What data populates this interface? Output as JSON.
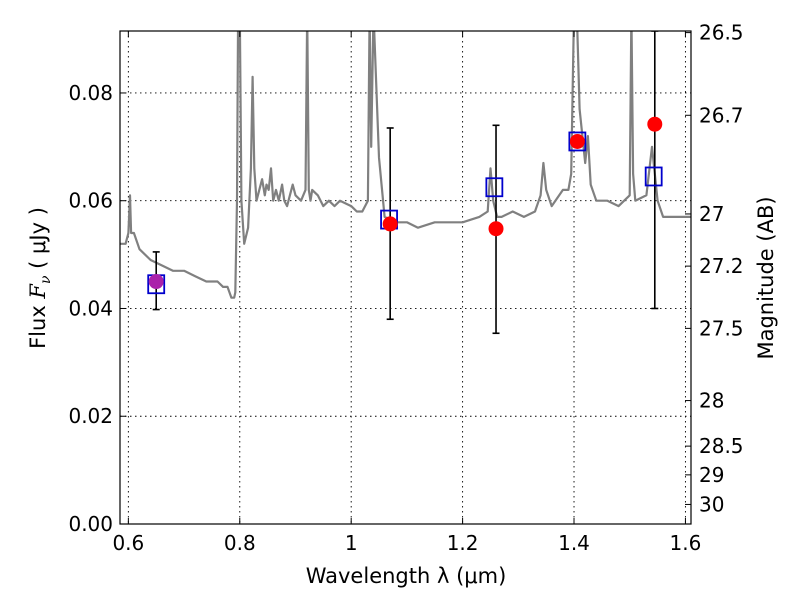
{
  "chart_data": {
    "type": "scatter",
    "xlabel": "Wavelength  λ (μm)",
    "ylabel": "Flux  F_ν  ( μJy )",
    "ylabel_parts": {
      "pre": "Flux ",
      "f": "F",
      "sub": "ν",
      "post": " ( μJy )"
    },
    "right_ylabel": "Magnitude (AB)",
    "xlim": [
      0.585,
      1.61
    ],
    "ylim": [
      0.0,
      0.0915
    ],
    "grid": true,
    "x_ticks": [
      {
        "value": 0.6,
        "label": "0.6"
      },
      {
        "value": 0.8,
        "label": "0.8"
      },
      {
        "value": 1.0,
        "label": "1"
      },
      {
        "value": 1.2,
        "label": "1.2"
      },
      {
        "value": 1.4,
        "label": "1.4"
      },
      {
        "value": 1.6,
        "label": "1.6"
      }
    ],
    "y_ticks": [
      {
        "value": 0.0,
        "label": "0.00"
      },
      {
        "value": 0.02,
        "label": "0.02"
      },
      {
        "value": 0.04,
        "label": "0.04"
      },
      {
        "value": 0.06,
        "label": "0.06"
      },
      {
        "value": 0.08,
        "label": "0.08"
      }
    ],
    "magnitude_ticks": [
      {
        "mag": 26.5,
        "label": "26.5"
      },
      {
        "mag": 26.7,
        "label": "26.7"
      },
      {
        "mag": 27.0,
        "label": "27"
      },
      {
        "mag": 27.2,
        "label": "27.2"
      },
      {
        "mag": 27.5,
        "label": "27.5"
      },
      {
        "mag": 28.0,
        "label": "28"
      },
      {
        "mag": 28.5,
        "label": "28.5"
      },
      {
        "mag": 29.0,
        "label": "29"
      },
      {
        "mag": 30.0,
        "label": "30"
      }
    ],
    "series": [
      {
        "name": "",
        "role": "model_sed",
        "style": "line",
        "color": "#808080",
        "x": [
          0.585,
          0.595,
          0.6,
          0.603,
          0.605,
          0.61,
          0.62,
          0.64,
          0.66,
          0.68,
          0.7,
          0.72,
          0.74,
          0.76,
          0.77,
          0.778,
          0.785,
          0.79,
          0.792,
          0.795,
          0.797,
          0.8,
          0.803,
          0.808,
          0.815,
          0.82,
          0.823,
          0.826,
          0.83,
          0.84,
          0.845,
          0.848,
          0.852,
          0.856,
          0.86,
          0.865,
          0.87,
          0.876,
          0.88,
          0.885,
          0.89,
          0.895,
          0.9,
          0.91,
          0.918,
          0.921,
          0.924,
          0.927,
          0.93,
          0.94,
          0.95,
          0.96,
          0.97,
          0.98,
          1.0,
          1.01,
          1.02,
          1.03,
          1.033,
          1.036,
          1.04,
          1.05,
          1.06,
          1.08,
          1.1,
          1.12,
          1.15,
          1.18,
          1.2,
          1.23,
          1.245,
          1.25,
          1.255,
          1.262,
          1.27,
          1.29,
          1.31,
          1.33,
          1.34,
          1.345,
          1.35,
          1.36,
          1.38,
          1.39,
          1.395,
          1.4,
          1.405,
          1.41,
          1.42,
          1.425,
          1.43,
          1.44,
          1.45,
          1.46,
          1.48,
          1.5,
          1.503,
          1.506,
          1.51,
          1.53,
          1.54,
          1.55,
          1.56,
          1.58,
          1.6,
          1.61
        ],
        "y": [
          0.052,
          0.052,
          0.054,
          0.061,
          0.054,
          0.054,
          0.051,
          0.049,
          0.048,
          0.047,
          0.047,
          0.046,
          0.045,
          0.045,
          0.044,
          0.044,
          0.042,
          0.042,
          0.043,
          0.06,
          0.095,
          0.095,
          0.06,
          0.052,
          0.055,
          0.066,
          0.083,
          0.066,
          0.06,
          0.064,
          0.061,
          0.063,
          0.062,
          0.066,
          0.06,
          0.062,
          0.06,
          0.063,
          0.06,
          0.059,
          0.061,
          0.063,
          0.061,
          0.06,
          0.062,
          0.095,
          0.062,
          0.06,
          0.062,
          0.061,
          0.059,
          0.06,
          0.059,
          0.06,
          0.059,
          0.058,
          0.058,
          0.06,
          0.095,
          0.07,
          0.095,
          0.068,
          0.057,
          0.056,
          0.056,
          0.055,
          0.056,
          0.056,
          0.056,
          0.057,
          0.058,
          0.066,
          0.06,
          0.057,
          0.057,
          0.058,
          0.057,
          0.058,
          0.061,
          0.067,
          0.062,
          0.059,
          0.062,
          0.062,
          0.065,
          0.095,
          0.095,
          0.077,
          0.067,
          0.072,
          0.063,
          0.06,
          0.06,
          0.06,
          0.059,
          0.061,
          0.095,
          0.065,
          0.06,
          0.061,
          0.07,
          0.06,
          0.057,
          0.057,
          0.057,
          0.057
        ]
      },
      {
        "name": "",
        "role": "model_photometry",
        "style": "open_square",
        "color": "#0000cc",
        "x": [
          0.65,
          1.068,
          1.257,
          1.406,
          1.543
        ],
        "y": [
          0.0445,
          0.0565,
          0.0625,
          0.071,
          0.0645
        ]
      },
      {
        "name": "",
        "role": "observed",
        "style": "filled_circle",
        "color": "#ff0000",
        "x": [
          1.07,
          1.26,
          1.406,
          1.545
        ],
        "y": [
          0.0557,
          0.0548,
          0.071,
          0.0742
        ],
        "error_low": [
          0.038,
          0.0354,
          null,
          0.04
        ],
        "error_high": [
          0.0735,
          0.074,
          null,
          0.0915
        ]
      },
      {
        "name": "",
        "role": "observed_visible",
        "style": "filled_circle",
        "color": "#aa22aa",
        "x": [
          0.65
        ],
        "y": [
          0.045
        ],
        "error_low": [
          0.0398
        ],
        "error_high": [
          0.0505
        ]
      }
    ]
  }
}
